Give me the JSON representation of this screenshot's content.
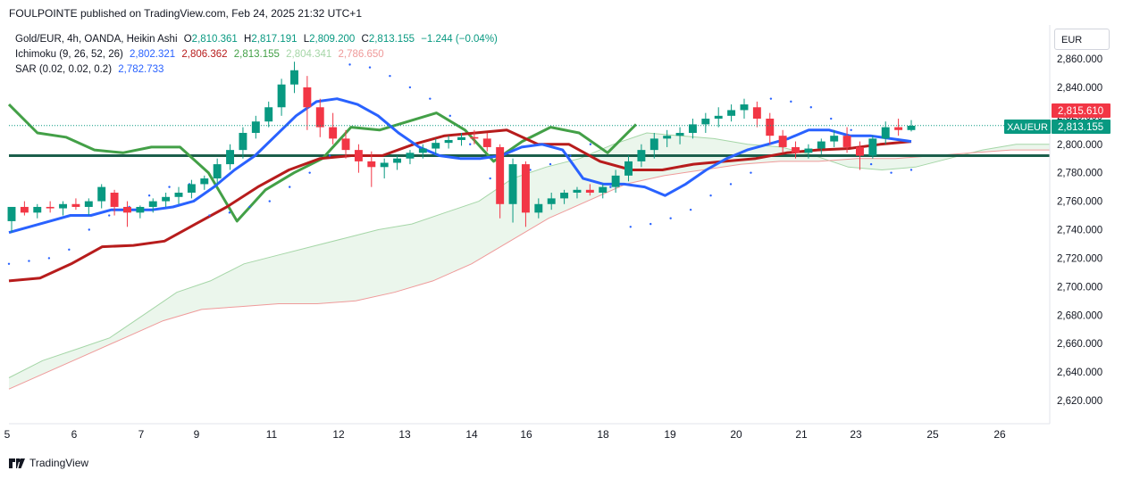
{
  "header": {
    "publisher_line": "FOULPOINTE published on TradingView.com, Feb 24, 2025 21:32 UTC+1"
  },
  "legend": {
    "symbol": "Gold/EUR, 4h, OANDA, Heikin Ashi",
    "ohlc": {
      "o_label": "O",
      "o": "2,810.361",
      "h_label": "H",
      "h": "2,817.191",
      "l_label": "L",
      "l": "2,809.200",
      "c_label": "C",
      "c": "2,813.155",
      "change": "−1.244 (−0.04%)"
    },
    "ichimoku": {
      "label": "Ichimoku (9, 26, 52, 26)",
      "tenkan": "2,802.321",
      "kijun": "2,806.362",
      "chikou": "2,813.155",
      "span_a": "2,804.341",
      "span_b": "2,786.650"
    },
    "sar": {
      "label": "SAR (0.02, 0.02, 0.2)",
      "value": "2,782.733"
    }
  },
  "footer": {
    "brand": "TradingView"
  },
  "price_axis": {
    "currency": "EUR",
    "ticks": [
      "2,860.000",
      "2,840.000",
      "2,820.000",
      "2,800.000",
      "2,780.000",
      "2,760.000",
      "2,740.000",
      "2,720.000",
      "2,700.000",
      "2,680.000",
      "2,660.000",
      "2,640.000",
      "2,620.000"
    ],
    "tags": [
      {
        "label": "",
        "value": "2,815.610",
        "color": "#f23645"
      },
      {
        "label": "XAUEUR",
        "value": "2,813.155",
        "color": "#089981"
      }
    ]
  },
  "colors": {
    "bull": "#089981",
    "bear": "#f23645",
    "tenkan": "#2962ff",
    "kijun": "#b71c1c",
    "chikou": "#43a047",
    "cloud_bull": "#a5d6a7",
    "cloud_bear": "#ef9a9a",
    "sar": "#2962ff",
    "hline": "#1b5e4b"
  },
  "chart_data": {
    "type": "candlestick",
    "symbol": "Gold/EUR",
    "timeframe": "4h",
    "style": "Heikin Ashi",
    "x_ticks": [
      "5",
      "6",
      "7",
      "9",
      "11",
      "12",
      "13",
      "14",
      "16",
      "18",
      "19",
      "20",
      "21",
      "23",
      "25",
      "26"
    ],
    "y_range": [
      2610,
      2870
    ],
    "horizontal_line": 2792,
    "candles": [
      [
        2746,
        2756,
        2738,
        2756
      ],
      [
        2756,
        2760,
        2750,
        2752
      ],
      [
        2752,
        2758,
        2748,
        2756
      ],
      [
        2756,
        2760,
        2752,
        2755
      ],
      [
        2755,
        2760,
        2750,
        2758
      ],
      [
        2758,
        2762,
        2754,
        2756
      ],
      [
        2756,
        2762,
        2750,
        2760
      ],
      [
        2760,
        2772,
        2755,
        2770
      ],
      [
        2766,
        2768,
        2750,
        2756
      ],
      [
        2756,
        2760,
        2742,
        2752
      ],
      [
        2752,
        2757,
        2748,
        2756
      ],
      [
        2756,
        2762,
        2752,
        2760
      ],
      [
        2760,
        2766,
        2756,
        2763
      ],
      [
        2763,
        2770,
        2758,
        2766
      ],
      [
        2766,
        2775,
        2762,
        2772
      ],
      [
        2772,
        2778,
        2768,
        2776
      ],
      [
        2776,
        2790,
        2772,
        2786
      ],
      [
        2786,
        2800,
        2782,
        2796
      ],
      [
        2796,
        2812,
        2790,
        2808
      ],
      [
        2808,
        2820,
        2804,
        2816
      ],
      [
        2816,
        2830,
        2812,
        2826
      ],
      [
        2826,
        2846,
        2820,
        2842
      ],
      [
        2842,
        2858,
        2836,
        2852
      ],
      [
        2840,
        2848,
        2810,
        2826
      ],
      [
        2826,
        2832,
        2805,
        2812
      ],
      [
        2812,
        2822,
        2800,
        2804
      ],
      [
        2804,
        2810,
        2790,
        2796
      ],
      [
        2796,
        2800,
        2780,
        2788
      ],
      [
        2788,
        2795,
        2770,
        2784
      ],
      [
        2784,
        2790,
        2776,
        2787
      ],
      [
        2787,
        2792,
        2782,
        2790
      ],
      [
        2790,
        2796,
        2786,
        2794
      ],
      [
        2794,
        2800,
        2790,
        2797
      ],
      [
        2797,
        2804,
        2793,
        2801
      ],
      [
        2801,
        2806,
        2797,
        2803
      ],
      [
        2803,
        2808,
        2799,
        2805
      ],
      [
        2805,
        2810,
        2800,
        2804
      ],
      [
        2804,
        2808,
        2795,
        2798
      ],
      [
        2798,
        2800,
        2748,
        2758
      ],
      [
        2758,
        2790,
        2745,
        2786
      ],
      [
        2786,
        2788,
        2742,
        2752
      ],
      [
        2752,
        2762,
        2748,
        2758
      ],
      [
        2758,
        2766,
        2754,
        2762
      ],
      [
        2762,
        2768,
        2758,
        2766
      ],
      [
        2766,
        2770,
        2762,
        2768
      ],
      [
        2768,
        2772,
        2764,
        2766
      ],
      [
        2766,
        2772,
        2762,
        2770
      ],
      [
        2770,
        2782,
        2766,
        2778
      ],
      [
        2778,
        2792,
        2774,
        2788
      ],
      [
        2788,
        2800,
        2784,
        2796
      ],
      [
        2796,
        2808,
        2790,
        2804
      ],
      [
        2804,
        2810,
        2798,
        2806
      ],
      [
        2806,
        2812,
        2800,
        2808
      ],
      [
        2808,
        2818,
        2804,
        2814
      ],
      [
        2814,
        2822,
        2808,
        2818
      ],
      [
        2818,
        2826,
        2812,
        2820
      ],
      [
        2820,
        2828,
        2816,
        2824
      ],
      [
        2824,
        2832,
        2818,
        2828
      ],
      [
        2826,
        2830,
        2812,
        2818
      ],
      [
        2818,
        2822,
        2800,
        2806
      ],
      [
        2806,
        2810,
        2794,
        2798
      ],
      [
        2798,
        2802,
        2790,
        2794
      ],
      [
        2794,
        2800,
        2790,
        2797
      ],
      [
        2797,
        2804,
        2793,
        2802
      ],
      [
        2802,
        2810,
        2798,
        2806
      ],
      [
        2806,
        2812,
        2794,
        2798
      ],
      [
        2798,
        2802,
        2782,
        2792
      ],
      [
        2792,
        2806,
        2790,
        2804
      ],
      [
        2804,
        2816,
        2800,
        2812
      ],
      [
        2812,
        2818,
        2806,
        2810
      ],
      [
        2810,
        2817,
        2809,
        2813
      ]
    ],
    "tenkan": [
      2738,
      2742,
      2746,
      2750,
      2750,
      2754,
      2754,
      2754,
      2756,
      2760,
      2770,
      2782,
      2792,
      2806,
      2820,
      2830,
      2832,
      2828,
      2820,
      2808,
      2798,
      2792,
      2790,
      2790,
      2792,
      2798,
      2800,
      2796,
      2776,
      2772,
      2772,
      2770,
      2764,
      2772,
      2782,
      2790,
      2796,
      2800,
      2804,
      2810,
      2810,
      2806,
      2806,
      2804,
      2802
    ],
    "kijun": [
      2704,
      2706,
      2716,
      2728,
      2729,
      2732,
      2744,
      2756,
      2770,
      2782,
      2790,
      2792,
      2792,
      2800,
      2806,
      2808,
      2810,
      2800,
      2800,
      2788,
      2782,
      2782,
      2786,
      2788,
      2790,
      2794,
      2796,
      2797,
      2800,
      2802
    ],
    "chikou": [
      2828,
      2808,
      2805,
      2796,
      2794,
      2798,
      2798,
      2780,
      2746,
      2768,
      2780,
      2790,
      2812,
      2810,
      2816,
      2822,
      2810,
      2788,
      2802,
      2812,
      2808,
      2794,
      2814
    ],
    "span_a": [
      2636,
      2648,
      2656,
      2664,
      2680,
      2696,
      2704,
      2716,
      2722,
      2728,
      2734,
      2740,
      2744,
      2752,
      2760,
      2776,
      2784,
      2790,
      2800,
      2808,
      2806,
      2804,
      2800,
      2798,
      2792,
      2784,
      2782,
      2784,
      2790,
      2796,
      2800,
      2800
    ],
    "span_b": [
      2628,
      2640,
      2652,
      2664,
      2676,
      2684,
      2686,
      2688,
      2688,
      2690,
      2696,
      2704,
      2716,
      2732,
      2748,
      2760,
      2772,
      2778,
      2782,
      2786,
      2788,
      2788,
      2790,
      2790,
      2792,
      2794,
      2796,
      2796
    ],
    "sar": [
      2716,
      2718,
      2720,
      2726,
      2740,
      2750,
      2756,
      2764,
      2770,
      2772,
      2750,
      2752,
      2756,
      2760,
      2770,
      2780,
      2792,
      2856,
      2854,
      2848,
      2840,
      2832,
      2820,
      2800,
      2776,
      2778,
      2782,
      2786,
      2792,
      2800,
      2770,
      2742,
      2744,
      2748,
      2754,
      2764,
      2772,
      2780,
      2832,
      2830,
      2826,
      2818,
      2810,
      2786,
      2780,
      2782
    ]
  }
}
